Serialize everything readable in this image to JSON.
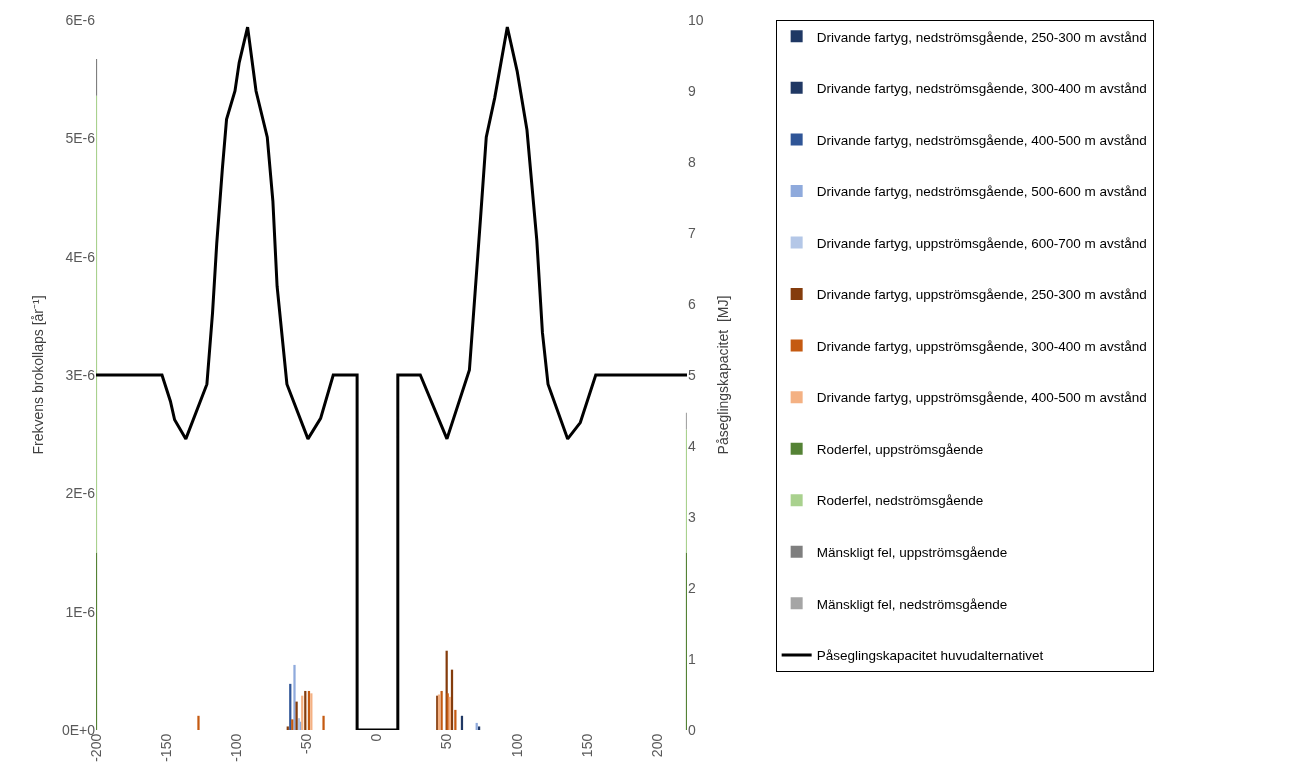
{
  "chart_data": {
    "type": "bar",
    "stacked": true,
    "xlim": [
      -200,
      221
    ],
    "xticks": [
      -200,
      -150,
      -100,
      -50,
      0,
      50,
      100,
      150,
      200
    ],
    "ylim": [
      0,
      6e-06
    ],
    "yticks": [
      {
        "value": 0,
        "label": "0E+0"
      },
      {
        "value": 1e-06,
        "label": "1E-6"
      },
      {
        "value": 2e-06,
        "label": "2E-6"
      },
      {
        "value": 3e-06,
        "label": "3E-6"
      },
      {
        "value": 4e-06,
        "label": "4E-6"
      },
      {
        "value": 5e-06,
        "label": "5E-6"
      },
      {
        "value": 6e-06,
        "label": "6E-6"
      }
    ],
    "y2lim": [
      0,
      10
    ],
    "y2ticks": [
      0,
      1,
      2,
      3,
      4,
      5,
      6,
      7,
      8,
      9,
      10
    ],
    "ylabel": "Frekvens brokollaps [år⁻¹]",
    "y2label": "Påseglingskapacitet  [MJ]",
    "legend": "right",
    "x": [
      -200,
      -127,
      -63.4,
      -61.6,
      -60.2,
      -58.6,
      -57.1,
      -55.5,
      -54.4,
      -53.1,
      -50.9,
      -48.3,
      -46.6,
      -37.9,
      43.1,
      44.3,
      46.2,
      49.8,
      50.5,
      52.1,
      53.6,
      56,
      60.7,
      71.2,
      72.9,
      221
    ],
    "series": [
      {
        "name": "Drivande fartyg, nedströmsgående, 250-300 m avstånd",
        "color": "#1f3864",
        "values": [
          null,
          null,
          null,
          null,
          null,
          null,
          null,
          null,
          null,
          null,
          null,
          null,
          null,
          null,
          null,
          null,
          null,
          null,
          null,
          null,
          null,
          null,
          null,
          null,
          3e-08,
          null
        ]
      },
      {
        "name": "Drivande fartyg, nedströmsgående, 300-400 m avstånd",
        "color": "#203864",
        "values": [
          null,
          null,
          null,
          null,
          null,
          null,
          null,
          null,
          null,
          null,
          null,
          null,
          null,
          null,
          null,
          null,
          null,
          null,
          null,
          null,
          null,
          null,
          1.2e-07,
          null,
          null,
          null
        ]
      },
      {
        "name": "Drivande fartyg, nedströmsgående, 400-500 m avstånd",
        "color": "#2f5597",
        "values": [
          null,
          null,
          null,
          3.9e-07,
          null,
          null,
          null,
          null,
          null,
          null,
          null,
          null,
          null,
          null,
          null,
          null,
          null,
          null,
          null,
          null,
          null,
          null,
          null,
          null,
          null,
          null
        ]
      },
      {
        "name": "Drivande fartyg, nedströmsgående, 500-600 m avstånd",
        "color": "#8faadc",
        "values": [
          null,
          null,
          null,
          null,
          null,
          5.5e-07,
          null,
          null,
          7e-08,
          null,
          null,
          null,
          null,
          null,
          null,
          null,
          null,
          null,
          null,
          null,
          null,
          null,
          null,
          6e-08,
          null,
          null
        ]
      },
      {
        "name": "Drivande fartyg, uppströmsgående, 600-700 m avstånd",
        "color": "#b4c7e7",
        "values": [
          null,
          null,
          null,
          null,
          null,
          null,
          null,
          1e-07,
          null,
          null,
          null,
          null,
          null,
          null,
          null,
          null,
          null,
          null,
          null,
          null,
          null,
          null,
          null,
          null,
          null,
          null
        ]
      },
      {
        "name": "Drivande fartyg, uppströmsgående, 250-300 m avstånd",
        "color": "#843c0c",
        "values": [
          null,
          null,
          3e-08,
          null,
          null,
          null,
          2.4e-07,
          null,
          null,
          null,
          3.3e-07,
          null,
          null,
          null,
          2.9e-07,
          null,
          null,
          6.7e-07,
          null,
          null,
          5.1e-07,
          null,
          null,
          null,
          null,
          null
        ]
      },
      {
        "name": "Drivande fartyg, uppströmsgående, 300-400 m avstånd",
        "color": "#c55a11",
        "values": [
          null,
          1.2e-07,
          null,
          null,
          9e-08,
          null,
          null,
          null,
          null,
          null,
          null,
          3.3e-07,
          null,
          1.2e-07,
          null,
          null,
          3.3e-07,
          null,
          3.1e-07,
          null,
          null,
          1.7e-07,
          null,
          null,
          null,
          null
        ]
      },
      {
        "name": "Drivande fartyg, uppströmsgående, 400-500 m avstånd",
        "color": "#f4b183",
        "values": [
          null,
          null,
          null,
          null,
          null,
          null,
          null,
          null,
          null,
          2.9e-07,
          null,
          null,
          3.1e-07,
          null,
          null,
          3e-07,
          null,
          null,
          null,
          2.8e-07,
          null,
          null,
          null,
          null,
          null,
          null
        ]
      },
      {
        "name": "Roderfel, uppströmsgående",
        "color": "#548235",
        "values": [
          1.5e-06,
          null,
          null,
          null,
          null,
          null,
          null,
          null,
          null,
          null,
          null,
          null,
          null,
          null,
          null,
          null,
          null,
          null,
          null,
          null,
          null,
          null,
          null,
          null,
          null,
          1.5e-06
        ]
      },
      {
        "name": "Roderfel, nedströmsgående",
        "color": "#a9d18e",
        "values": [
          3.86e-06,
          null,
          null,
          null,
          null,
          null,
          null,
          null,
          null,
          null,
          null,
          null,
          null,
          null,
          null,
          null,
          null,
          null,
          null,
          null,
          null,
          null,
          null,
          null,
          null,
          1.04e-06
        ]
      },
      {
        "name": "Mänskligt fel, uppströmsgående",
        "color": "#7f7f7f",
        "values": [
          3.1e-07,
          null,
          null,
          null,
          null,
          null,
          null,
          null,
          null,
          null,
          null,
          null,
          null,
          null,
          null,
          null,
          null,
          null,
          null,
          null,
          null,
          null,
          null,
          null,
          null,
          null
        ]
      },
      {
        "name": "Mänskligt fel, nedströmsgående",
        "color": "#a5a5a5",
        "values": [
          null,
          null,
          null,
          null,
          null,
          null,
          null,
          null,
          null,
          null,
          null,
          null,
          null,
          null,
          null,
          null,
          null,
          null,
          null,
          null,
          null,
          null,
          null,
          null,
          null,
          1.4e-07
        ]
      },
      {
        "name": "Påseglingskapacitet huvudalternativet",
        "type": "line",
        "axis": "y2",
        "color": "#000000",
        "x": [
          -200,
          -153,
          -147,
          -144,
          -136,
          -121,
          -117,
          -114,
          -110,
          -107,
          -101,
          -98,
          -92,
          -86,
          -78,
          -74,
          -71,
          -64,
          -49,
          -40,
          -31,
          -14,
          -14,
          15,
          15,
          31,
          50,
          66,
          70,
          74,
          78,
          84,
          93,
          100,
          107,
          114,
          118,
          122,
          136,
          145,
          156,
          221
        ],
        "values": [
          5,
          5,
          4.63,
          4.37,
          4.1,
          4.87,
          5.87,
          6.85,
          7.9,
          8.6,
          9.0,
          9.4,
          9.9,
          9.0,
          8.35,
          7.45,
          6.25,
          4.87,
          4.1,
          4.39,
          5,
          5,
          0,
          0,
          5,
          5,
          4.1,
          5.07,
          6.15,
          7.23,
          8.35,
          8.9,
          9.9,
          9.28,
          8.45,
          6.9,
          5.6,
          4.87,
          4.1,
          4.33,
          5,
          5
        ]
      }
    ]
  }
}
